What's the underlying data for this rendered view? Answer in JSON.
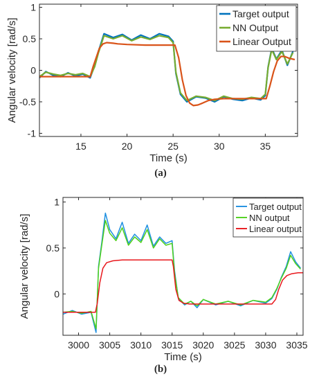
{
  "chart_data": [
    {
      "type": "line",
      "xlabel": "Time (s)",
      "ylabel": "Angular velocity [rad/s]",
      "xlim": [
        10.5,
        38.5
      ],
      "ylim": [
        -1.05,
        1.05
      ],
      "xticks": [
        "15",
        "20",
        "25",
        "30",
        "35"
      ],
      "xtick_values": [
        15,
        20,
        25,
        30,
        35
      ],
      "yticks": [
        "-1",
        "-0.5",
        "0",
        "0.5",
        "1"
      ],
      "ytick_values": [
        -1,
        -0.5,
        0,
        0.5,
        1
      ],
      "legend_position": "top-right",
      "grid": false,
      "caption": "(a)",
      "series": [
        {
          "name": "Target output",
          "color": "#0072bd",
          "x": [
            10.5,
            11.2,
            12,
            12.8,
            13.6,
            14.4,
            15.2,
            16,
            16.5,
            16.9,
            17.5,
            18.5,
            19.5,
            20.5,
            21.5,
            22.5,
            23.5,
            24.5,
            25,
            25.3,
            25.8,
            26.5,
            27.5,
            28.5,
            29.5,
            30.5,
            31.5,
            32.5,
            33.5,
            34.5,
            35,
            35.3,
            35.7,
            36.2,
            36.8,
            37.4,
            38
          ],
          "y": [
            -0.12,
            -0.02,
            -0.08,
            -0.1,
            -0.04,
            -0.09,
            -0.06,
            -0.12,
            0.08,
            0.3,
            0.58,
            0.52,
            0.57,
            0.48,
            0.56,
            0.5,
            0.58,
            0.54,
            0.46,
            -0.05,
            -0.38,
            -0.5,
            -0.42,
            -0.44,
            -0.5,
            -0.42,
            -0.46,
            -0.48,
            -0.44,
            -0.47,
            -0.4,
            0.05,
            0.35,
            0.18,
            0.32,
            0.08,
            0.3
          ]
        },
        {
          "name": "NN Output",
          "color": "#77ac30",
          "x": [
            10.5,
            11.2,
            12,
            12.8,
            13.6,
            14.4,
            15.2,
            16,
            16.5,
            16.9,
            17.5,
            18.5,
            19.5,
            20.5,
            21.5,
            22.5,
            23.5,
            24.5,
            25,
            25.3,
            25.8,
            26.5,
            27.5,
            28.5,
            29.5,
            30.5,
            31.5,
            32.5,
            33.5,
            34.5,
            35,
            35.3,
            35.7,
            36.2,
            36.8,
            37.4,
            38
          ],
          "y": [
            -0.1,
            -0.03,
            -0.06,
            -0.08,
            -0.05,
            -0.07,
            -0.05,
            -0.1,
            0.06,
            0.28,
            0.55,
            0.5,
            0.55,
            0.47,
            0.53,
            0.49,
            0.55,
            0.52,
            0.44,
            -0.03,
            -0.36,
            -0.48,
            -0.41,
            -0.43,
            -0.48,
            -0.41,
            -0.45,
            -0.46,
            -0.43,
            -0.45,
            -0.38,
            0.04,
            0.33,
            0.17,
            0.3,
            0.1,
            0.28
          ]
        },
        {
          "name": "Linear Output",
          "color": "#d95319",
          "x": [
            10.5,
            12,
            14,
            16,
            16.3,
            16.7,
            17,
            17.4,
            17.8,
            18.5,
            19,
            20,
            22,
            24,
            25.2,
            25.6,
            26,
            26.4,
            26.8,
            27.2,
            27.7,
            28.2,
            28.8,
            29.5,
            30.5,
            32,
            34,
            35.1,
            35.5,
            35.9,
            36.3,
            36.7,
            37.1,
            37.6,
            38.2
          ],
          "y": [
            -0.1,
            -0.1,
            -0.1,
            -0.1,
            0.05,
            0.22,
            0.35,
            0.42,
            0.44,
            0.43,
            0.42,
            0.41,
            0.4,
            0.4,
            0.4,
            0.2,
            -0.15,
            -0.4,
            -0.52,
            -0.56,
            -0.55,
            -0.52,
            -0.48,
            -0.46,
            -0.45,
            -0.45,
            -0.45,
            -0.45,
            -0.25,
            -0.02,
            0.15,
            0.22,
            0.22,
            0.19,
            0.17
          ]
        }
      ]
    },
    {
      "type": "line",
      "xlabel": "Time (s)",
      "ylabel": "Angular velocity [rad/s]",
      "xlim": [
        2997.5,
        3036
      ],
      "ylim": [
        -0.45,
        1.05
      ],
      "xticks": [
        "3000",
        "3005",
        "3010",
        "3015",
        "3020",
        "3025",
        "3030",
        "3035"
      ],
      "xtick_values": [
        3000,
        3005,
        3010,
        3015,
        3020,
        3025,
        3030,
        3035
      ],
      "yticks": [
        "0",
        "0.5",
        "1"
      ],
      "ytick_values": [
        0,
        0.5,
        1
      ],
      "legend_position": "top-right",
      "grid": false,
      "caption": "(b)",
      "series": [
        {
          "name": "Target output",
          "color": "#1e8fe0",
          "x": [
            2997.5,
            2999,
            3000.5,
            3002,
            3002.8,
            3003.2,
            3003.7,
            3004.3,
            3005,
            3006,
            3007,
            3008,
            3009,
            3010,
            3011,
            3012,
            3013,
            3014,
            3015,
            3015.4,
            3016,
            3017,
            3018,
            3019,
            3020,
            3022,
            3024,
            3026,
            3028,
            3030,
            3031,
            3031.8,
            3032.5,
            3033.3,
            3034,
            3034.8,
            3035.6
          ],
          "y": [
            -0.22,
            -0.18,
            -0.22,
            -0.2,
            -0.42,
            0.3,
            0.55,
            0.88,
            0.7,
            0.6,
            0.78,
            0.55,
            0.65,
            0.58,
            0.75,
            0.52,
            0.62,
            0.55,
            0.58,
            0.25,
            -0.05,
            -0.12,
            -0.08,
            -0.15,
            -0.06,
            -0.12,
            -0.08,
            -0.13,
            -0.07,
            -0.1,
            -0.05,
            0.05,
            0.18,
            0.3,
            0.46,
            0.35,
            0.28
          ]
        },
        {
          "name": "NN output",
          "color": "#4dd11a",
          "x": [
            2997.5,
            2999,
            3000.5,
            3002,
            3002.8,
            3003.2,
            3003.7,
            3004.3,
            3005,
            3006,
            3007,
            3008,
            3009,
            3010,
            3011,
            3012,
            3013,
            3014,
            3015,
            3015.4,
            3016,
            3017,
            3018,
            3019,
            3020,
            3022,
            3024,
            3026,
            3028,
            3030,
            3031,
            3031.8,
            3032.5,
            3033.3,
            3034,
            3034.8,
            3035.6
          ],
          "y": [
            -0.2,
            -0.19,
            -0.21,
            -0.19,
            -0.38,
            0.28,
            0.52,
            0.8,
            0.66,
            0.58,
            0.72,
            0.53,
            0.62,
            0.56,
            0.7,
            0.5,
            0.6,
            0.53,
            0.55,
            0.22,
            -0.04,
            -0.11,
            -0.08,
            -0.13,
            -0.06,
            -0.11,
            -0.08,
            -0.12,
            -0.07,
            -0.09,
            -0.04,
            0.06,
            0.17,
            0.28,
            0.42,
            0.33,
            0.27
          ]
        },
        {
          "name": "Linear output",
          "color": "#e8161b",
          "x": [
            2997.5,
            3000,
            3002.7,
            3003,
            3003.4,
            3003.9,
            3004.5,
            3005.5,
            3007,
            3010,
            3013,
            3015,
            3015.2,
            3015.6,
            3016.1,
            3016.8,
            3017.8,
            3020,
            3025,
            3031,
            3031.6,
            3032.1,
            3032.7,
            3033.4,
            3034.2,
            3035.2,
            3036
          ],
          "y": [
            -0.2,
            -0.2,
            -0.2,
            -0.1,
            0.12,
            0.28,
            0.34,
            0.36,
            0.37,
            0.37,
            0.37,
            0.37,
            0.3,
            0.05,
            -0.07,
            -0.1,
            -0.11,
            -0.11,
            -0.11,
            -0.11,
            -0.06,
            0.05,
            0.15,
            0.2,
            0.22,
            0.23,
            0.23
          ]
        }
      ]
    }
  ]
}
